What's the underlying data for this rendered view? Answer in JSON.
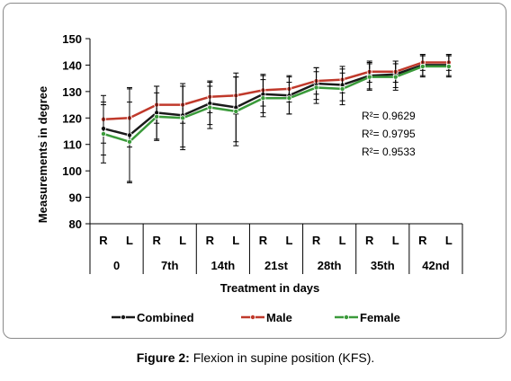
{
  "chart_data": {
    "type": "line",
    "ylabel": "Measurements in degree",
    "xlabel": "Treatment in days",
    "ylim": [
      80,
      150
    ],
    "yticks": [
      80,
      90,
      100,
      110,
      120,
      130,
      140,
      150
    ],
    "x": [
      "R",
      "L",
      "R",
      "L",
      "R",
      "L",
      "R",
      "L",
      "R",
      "L",
      "R",
      "L",
      "R",
      "L"
    ],
    "groups": [
      "0",
      "7th",
      "14th",
      "21st",
      "28th",
      "35th",
      "42nd"
    ],
    "series": [
      {
        "name": "Combined",
        "color": "#1a1a1a",
        "values": [
          116,
          113.5,
          122,
          121,
          125.5,
          124,
          129,
          128.5,
          133,
          132.5,
          136,
          136.5,
          140,
          140
        ],
        "errors": [
          10,
          18,
          10,
          12,
          8,
          13,
          7,
          7,
          6,
          6,
          5,
          5,
          4,
          4
        ]
      },
      {
        "name": "Male",
        "color": "#c0392b",
        "values": [
          119.5,
          120,
          125,
          125,
          128,
          128.5,
          130.5,
          131,
          134,
          134.5,
          137.5,
          137.5,
          141,
          141
        ],
        "errors": [
          9,
          11,
          7,
          7,
          6,
          7,
          6,
          5,
          5,
          5,
          4,
          4,
          3,
          3
        ]
      },
      {
        "name": "Female",
        "color": "#3a9a3a",
        "values": [
          114,
          111,
          120.5,
          120,
          124,
          122.5,
          127.5,
          127.5,
          131.5,
          131,
          135.5,
          135.5,
          139.5,
          139.5
        ],
        "errors": [
          11,
          15,
          9,
          12,
          8,
          13,
          7,
          6,
          6,
          6,
          5,
          5,
          4,
          4
        ]
      }
    ],
    "annotations": [
      "R²= 0.9629",
      "R²= 0.9795",
      "R²= 0.9533"
    ],
    "legend": "bottom",
    "grid": false
  },
  "caption": {
    "label": "Figure 2:",
    "text": " Flexion in supine position (KFS)."
  }
}
